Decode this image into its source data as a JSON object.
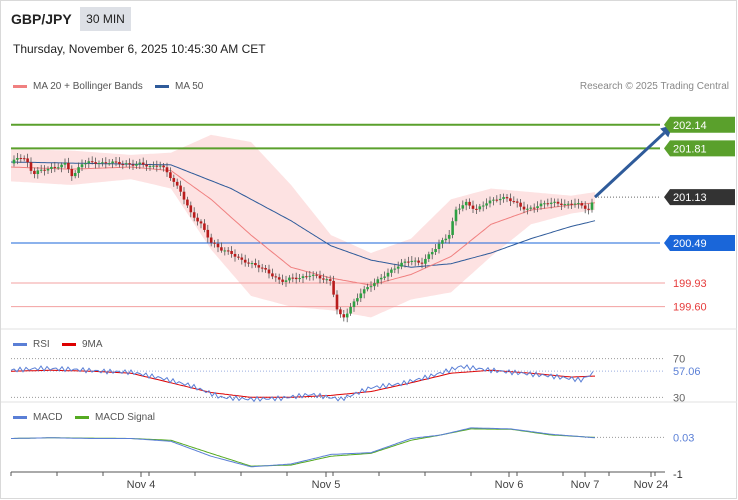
{
  "header": {
    "symbol": "GBP/JPY",
    "timeframe": "30 MIN",
    "datetime": "Thursday, November 6, 2025 10:45:30 AM CET",
    "credit": "Research © 2025 Trading Central"
  },
  "colors": {
    "ma20": "#f08080",
    "ma50": "#2f5b9a",
    "bollinger_fill": "#fde2e2",
    "resistance": "#5aa02c",
    "current_price": "#333333",
    "support_blue": "#1a66d9",
    "support_red": "#e63c3c",
    "rsi": "#5a7fd6",
    "rsi_ma": "#dd0000",
    "macd": "#5a7fd6",
    "macd_signal": "#55aa22",
    "forecast_arrow": "#2f5b9a"
  },
  "chart_data": [
    {
      "type": "candlestick",
      "legend": [
        {
          "label": "MA 20 + Bollinger Bands",
          "color": "#f08080"
        },
        {
          "label": "MA 50",
          "color": "#2f5b9a"
        }
      ],
      "ylim": [
        199.4,
        202.5
      ],
      "levels": [
        {
          "value": 202.14,
          "label": "202.14",
          "kind": "resistance"
        },
        {
          "value": 201.81,
          "label": "201.81",
          "kind": "resistance"
        },
        {
          "value": 201.13,
          "label": "201.13",
          "kind": "current"
        },
        {
          "value": 200.49,
          "label": "200.49",
          "kind": "support"
        },
        {
          "value": 199.93,
          "label": "199.93",
          "kind": "support-red"
        },
        {
          "value": 199.6,
          "label": "199.60",
          "kind": "support-red"
        }
      ],
      "close_path": [
        [
          0,
          201.6
        ],
        [
          8,
          201.7
        ],
        [
          15,
          201.65
        ],
        [
          22,
          201.45
        ],
        [
          28,
          201.5
        ],
        [
          35,
          201.52
        ],
        [
          45,
          201.55
        ],
        [
          55,
          201.6
        ],
        [
          62,
          201.4
        ],
        [
          70,
          201.6
        ],
        [
          80,
          201.62
        ],
        [
          90,
          201.6
        ],
        [
          100,
          201.62
        ],
        [
          110,
          201.6
        ],
        [
          120,
          201.58
        ],
        [
          130,
          201.6
        ],
        [
          140,
          201.55
        ],
        [
          150,
          201.58
        ],
        [
          160,
          201.4
        ],
        [
          170,
          201.2
        ],
        [
          180,
          200.9
        ],
        [
          190,
          200.75
        ],
        [
          200,
          200.5
        ],
        [
          210,
          200.4
        ],
        [
          220,
          200.35
        ],
        [
          230,
          200.25
        ],
        [
          240,
          200.2
        ],
        [
          250,
          200.15
        ],
        [
          260,
          200.05
        ],
        [
          270,
          199.95
        ],
        [
          280,
          200.0
        ],
        [
          290,
          200.0
        ],
        [
          300,
          200.05
        ],
        [
          310,
          200.0
        ],
        [
          320,
          199.95
        ],
        [
          327,
          199.5
        ],
        [
          333,
          199.45
        ],
        [
          340,
          199.6
        ],
        [
          350,
          199.8
        ],
        [
          360,
          199.9
        ],
        [
          370,
          200.0
        ],
        [
          380,
          200.1
        ],
        [
          390,
          200.2
        ],
        [
          400,
          200.25
        ],
        [
          410,
          200.2
        ],
        [
          420,
          200.35
        ],
        [
          430,
          200.5
        ],
        [
          438,
          200.6
        ],
        [
          445,
          200.95
        ],
        [
          455,
          201.05
        ],
        [
          465,
          200.95
        ],
        [
          475,
          201.05
        ],
        [
          485,
          201.1
        ],
        [
          495,
          201.12
        ],
        [
          505,
          201.05
        ],
        [
          515,
          200.95
        ],
        [
          525,
          201.0
        ],
        [
          535,
          201.05
        ],
        [
          545,
          201.05
        ],
        [
          555,
          201.02
        ],
        [
          565,
          201.05
        ],
        [
          572,
          201.0
        ],
        [
          578,
          200.95
        ],
        [
          584,
          201.13
        ]
      ],
      "ma20": [
        [
          0,
          201.55
        ],
        [
          60,
          201.52
        ],
        [
          120,
          201.55
        ],
        [
          160,
          201.5
        ],
        [
          200,
          201.1
        ],
        [
          240,
          200.6
        ],
        [
          280,
          200.15
        ],
        [
          320,
          200.0
        ],
        [
          360,
          199.9
        ],
        [
          400,
          200.05
        ],
        [
          440,
          200.3
        ],
        [
          480,
          200.75
        ],
        [
          520,
          200.95
        ],
        [
          560,
          201.02
        ],
        [
          584,
          201.05
        ]
      ],
      "ma50": [
        [
          0,
          201.62
        ],
        [
          80,
          201.6
        ],
        [
          160,
          201.58
        ],
        [
          220,
          201.25
        ],
        [
          280,
          200.8
        ],
        [
          320,
          200.45
        ],
        [
          360,
          200.25
        ],
        [
          400,
          200.15
        ],
        [
          440,
          200.2
        ],
        [
          480,
          200.35
        ],
        [
          520,
          200.55
        ],
        [
          560,
          200.72
        ],
        [
          584,
          200.8
        ]
      ],
      "bollinger_upper": [
        [
          0,
          201.8
        ],
        [
          60,
          201.78
        ],
        [
          120,
          201.72
        ],
        [
          160,
          201.75
        ],
        [
          200,
          202.0
        ],
        [
          240,
          201.9
        ],
        [
          280,
          201.3
        ],
        [
          320,
          200.6
        ],
        [
          360,
          200.35
        ],
        [
          400,
          200.55
        ],
        [
          440,
          201.1
        ],
        [
          480,
          201.25
        ],
        [
          520,
          201.2
        ],
        [
          560,
          201.15
        ],
        [
          584,
          201.2
        ]
      ],
      "bollinger_lower": [
        [
          0,
          201.35
        ],
        [
          60,
          201.3
        ],
        [
          120,
          201.38
        ],
        [
          160,
          201.25
        ],
        [
          200,
          200.4
        ],
        [
          240,
          199.75
        ],
        [
          280,
          199.6
        ],
        [
          320,
          199.55
        ],
        [
          360,
          199.45
        ],
        [
          400,
          199.7
        ],
        [
          440,
          199.8
        ],
        [
          480,
          200.3
        ],
        [
          520,
          200.75
        ],
        [
          560,
          200.9
        ],
        [
          584,
          200.95
        ]
      ],
      "forecast_arrow": {
        "from": [
          584,
          201.13
        ],
        "to": [
          662,
          202.14
        ]
      }
    },
    {
      "type": "line",
      "legend": [
        {
          "label": "RSI",
          "color": "#5a7fd6"
        },
        {
          "label": "9MA",
          "color": "#dd0000"
        }
      ],
      "ylim": [
        20,
        80
      ],
      "levels": [
        {
          "value": 70,
          "label": "70"
        },
        {
          "value": 57.06,
          "label": "57.06"
        },
        {
          "value": 30,
          "label": "30"
        }
      ],
      "rsi": [
        [
          0,
          58
        ],
        [
          30,
          60
        ],
        [
          60,
          59
        ],
        [
          90,
          57
        ],
        [
          120,
          56
        ],
        [
          150,
          50
        ],
        [
          180,
          42
        ],
        [
          210,
          30
        ],
        [
          240,
          28
        ],
        [
          270,
          29
        ],
        [
          300,
          33
        ],
        [
          330,
          28
        ],
        [
          360,
          40
        ],
        [
          390,
          44
        ],
        [
          420,
          52
        ],
        [
          450,
          62
        ],
        [
          480,
          58
        ],
        [
          510,
          55
        ],
        [
          540,
          52
        ],
        [
          570,
          48
        ],
        [
          584,
          56
        ]
      ],
      "rsi_ma": [
        [
          0,
          57
        ],
        [
          40,
          58
        ],
        [
          80,
          57
        ],
        [
          120,
          55
        ],
        [
          160,
          45
        ],
        [
          200,
          35
        ],
        [
          240,
          30
        ],
        [
          280,
          30
        ],
        [
          320,
          32
        ],
        [
          360,
          36
        ],
        [
          400,
          45
        ],
        [
          440,
          55
        ],
        [
          480,
          58
        ],
        [
          520,
          55
        ],
        [
          560,
          51
        ],
        [
          584,
          52
        ]
      ]
    },
    {
      "type": "line",
      "legend": [
        {
          "label": "MACD",
          "color": "#5a7fd6"
        },
        {
          "label": "MACD Signal",
          "color": "#55aa22"
        }
      ],
      "ylim": [
        -1.2,
        0.55
      ],
      "levels": [
        {
          "value": 0.03,
          "label": "0.03"
        },
        {
          "value": -1,
          "label": "-1"
        }
      ],
      "macd": [
        [
          0,
          0.0
        ],
        [
          40,
          0.02
        ],
        [
          80,
          0.0
        ],
        [
          120,
          0.0
        ],
        [
          160,
          -0.08
        ],
        [
          200,
          -0.5
        ],
        [
          240,
          -0.8
        ],
        [
          280,
          -0.72
        ],
        [
          320,
          -0.45
        ],
        [
          360,
          -0.4
        ],
        [
          400,
          0.0
        ],
        [
          430,
          0.1
        ],
        [
          460,
          0.3
        ],
        [
          500,
          0.27
        ],
        [
          540,
          0.12
        ],
        [
          584,
          0.02
        ]
      ],
      "macd_signal": [
        [
          0,
          0.0
        ],
        [
          40,
          0.02
        ],
        [
          80,
          0.01
        ],
        [
          120,
          0.0
        ],
        [
          160,
          -0.05
        ],
        [
          200,
          -0.42
        ],
        [
          240,
          -0.78
        ],
        [
          280,
          -0.75
        ],
        [
          320,
          -0.5
        ],
        [
          360,
          -0.42
        ],
        [
          400,
          -0.05
        ],
        [
          430,
          0.1
        ],
        [
          460,
          0.27
        ],
        [
          500,
          0.26
        ],
        [
          540,
          0.1
        ],
        [
          584,
          0.03
        ]
      ]
    }
  ],
  "x_axis": {
    "ticks": [
      {
        "label": "Nov 4",
        "pos": 130
      },
      {
        "label": "Nov 5",
        "pos": 315
      },
      {
        "label": "Nov 6",
        "pos": 498
      },
      {
        "label": "Nov 7",
        "pos": 574
      },
      {
        "label": "Nov 24",
        "pos": 640
      }
    ]
  }
}
